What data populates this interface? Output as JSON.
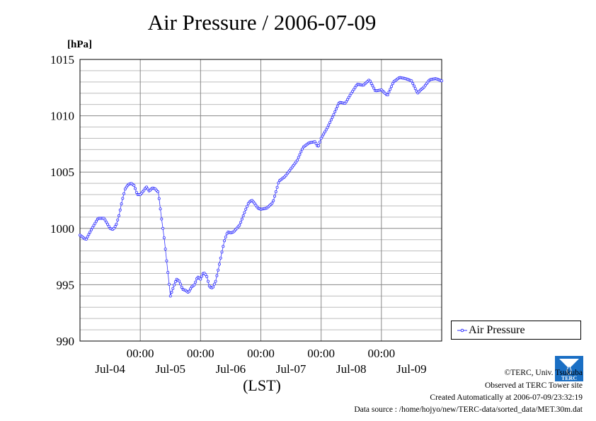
{
  "chart_data": {
    "type": "line",
    "title": "Air Pressure / 2006-07-09",
    "y_unit": "[hPa]",
    "xlabel": "(LST)",
    "ylim": [
      990,
      1015
    ],
    "yticks": [
      "990",
      "995",
      "1000",
      "1005",
      "1010",
      "1015"
    ],
    "xlim": [
      0,
      6
    ],
    "x_note": "x in days since start of plot (midnights at 1..5)",
    "xticks": [
      {
        "x": 1,
        "time": "00:00"
      },
      {
        "x": 2,
        "time": "00:00"
      },
      {
        "x": 3,
        "time": "00:00"
      },
      {
        "x": 4,
        "time": "00:00"
      },
      {
        "x": 5,
        "time": "00:00"
      }
    ],
    "day_labels": [
      {
        "x": 0.5,
        "label": "Jul-04"
      },
      {
        "x": 1.5,
        "label": "Jul-05"
      },
      {
        "x": 2.5,
        "label": "Jul-06"
      },
      {
        "x": 3.5,
        "label": "Jul-07"
      },
      {
        "x": 4.5,
        "label": "Jul-08"
      },
      {
        "x": 5.5,
        "label": "Jul-09"
      }
    ],
    "grid": true,
    "legend_position": "right, bottom",
    "color": "#3333ff",
    "series": [
      {
        "name": "Air Pressure",
        "x": [
          0.0,
          0.1,
          0.15,
          0.2,
          0.3,
          0.4,
          0.5,
          0.55,
          0.6,
          0.65,
          0.7,
          0.75,
          0.8,
          0.85,
          0.9,
          0.95,
          1.0,
          1.05,
          1.1,
          1.15,
          1.2,
          1.25,
          1.3,
          1.35,
          1.4,
          1.45,
          1.5,
          1.55,
          1.6,
          1.65,
          1.7,
          1.75,
          1.8,
          1.85,
          1.9,
          1.95,
          2.0,
          2.05,
          2.1,
          2.15,
          2.2,
          2.25,
          2.3,
          2.35,
          2.4,
          2.45,
          2.5,
          2.55,
          2.6,
          2.65,
          2.7,
          2.75,
          2.8,
          2.85,
          2.9,
          2.95,
          3.0,
          3.1,
          3.2,
          3.3,
          3.4,
          3.5,
          3.6,
          3.7,
          3.8,
          3.9,
          3.95,
          4.0,
          4.1,
          4.2,
          4.3,
          4.4,
          4.5,
          4.6,
          4.7,
          4.8,
          4.9,
          5.0,
          5.1,
          5.2,
          5.3,
          5.4,
          5.5,
          5.6,
          5.65,
          5.7,
          5.8,
          5.9,
          6.0
        ],
        "y": [
          999.4,
          999.0,
          999.5,
          1000.0,
          1000.9,
          1000.9,
          1000.0,
          999.9,
          1000.3,
          1001.2,
          1002.5,
          1003.5,
          1003.9,
          1004.0,
          1003.8,
          1003.0,
          1003.0,
          1003.3,
          1003.7,
          1003.3,
          1003.6,
          1003.5,
          1003.2,
          1001.0,
          999.0,
          996.5,
          994.0,
          994.8,
          995.5,
          995.3,
          994.6,
          994.5,
          994.3,
          994.8,
          995.0,
          995.7,
          995.5,
          996.1,
          995.8,
          994.8,
          994.7,
          995.3,
          996.5,
          997.8,
          999.0,
          999.7,
          999.6,
          999.7,
          1000.0,
          1000.3,
          1001.0,
          1001.7,
          1002.3,
          1002.5,
          1002.2,
          1001.8,
          1001.7,
          1001.8,
          1002.3,
          1004.2,
          1004.6,
          1005.3,
          1006.0,
          1007.2,
          1007.6,
          1007.7,
          1007.2,
          1008.0,
          1008.9,
          1010.0,
          1011.2,
          1011.1,
          1012.0,
          1012.8,
          1012.7,
          1013.2,
          1012.2,
          1012.3,
          1011.8,
          1013.0,
          1013.4,
          1013.3,
          1013.1,
          1012.0,
          1012.3,
          1012.5,
          1013.2,
          1013.3,
          1013.1
        ]
      }
    ]
  },
  "credits": {
    "line1": "©TERC, Univ. Tsukuba",
    "line2": "Observed at TERC Tower site",
    "line3": "Created Automatically at 2006-07-09/23:32:19",
    "line4": "Data source : /home/hojyo/new/TERC-data/sorted_data/MET.30m.dat"
  },
  "logo": {
    "text": "TERC",
    "color": "#1a6fc4"
  }
}
